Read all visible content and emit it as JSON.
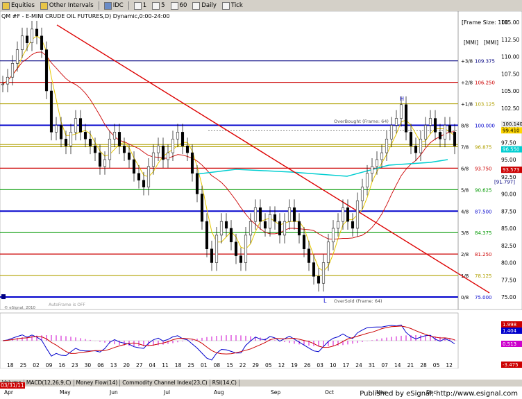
{
  "toolbar": {
    "items": [
      {
        "label": "Equities",
        "icon": "folder-icon"
      },
      {
        "label": "Other Intervals",
        "icon": "folder-icon"
      },
      {
        "label": "IDC",
        "icon": "settings-icon"
      },
      {
        "label": "1",
        "icon": "page-icon"
      },
      {
        "label": "5",
        "icon": "page-icon"
      },
      {
        "label": "60",
        "icon": "page-icon"
      },
      {
        "label": "Daily",
        "icon": "page-icon"
      },
      {
        "label": "Tick",
        "icon": "page-icon"
      }
    ]
  },
  "chart": {
    "title": "QM #F - E-MINI CRUDE OIL FUTURES,D) Dynamic,0:00-24:00",
    "frame_size": "[Frame Size: 100",
    "mm_label": "[MMI]",
    "overbought": "OverBought (Frame: 64)",
    "oversold": "OverSold (Frame: 64)",
    "watermark": "AutoFrame is OFF",
    "copyright": "© eSignal, 2010",
    "price_label": "100.140",
    "price_label_yellow": "99.410",
    "cyan_label": "96.550",
    "red_label": "93.573",
    "bracket_label": "[91.797]",
    "date_box": "03/31/11",
    "murrey": [
      {
        "label": "+3/8",
        "value": "109.375",
        "color": "#000080"
      },
      {
        "label": "+2/8",
        "value": "106.250",
        "color": "#cc0000"
      },
      {
        "label": "+1/8",
        "value": "103.125",
        "color": "#b0a000"
      },
      {
        "label": "8/8",
        "value": "100.000",
        "color": "#0000cc"
      },
      {
        "label": "7/8",
        "value": "96.875",
        "color": "#b0a000"
      },
      {
        "label": "6/8",
        "value": "93.750",
        "color": "#cc0000"
      },
      {
        "label": "5/8",
        "value": "90.625",
        "color": "#009900"
      },
      {
        "label": "4/8",
        "value": "87.500",
        "color": "#0000cc"
      },
      {
        "label": "3/8",
        "value": "84.375",
        "color": "#009900"
      },
      {
        "label": "2/8",
        "value": "81.250",
        "color": "#cc0000"
      },
      {
        "label": "1/8",
        "value": "78.125",
        "color": "#b0a000"
      },
      {
        "label": "0/8",
        "value": "75.000",
        "color": "#0000cc"
      }
    ],
    "y_ticks": [
      "115.00",
      "112.50",
      "110.00",
      "107.50",
      "105.00",
      "102.50",
      "100.00",
      "97.50",
      "95.00",
      "92.50",
      "90.00",
      "87.50",
      "85.00",
      "82.50",
      "80.00",
      "77.50",
      "75.00"
    ],
    "markers": {
      "H": "H",
      "L": "L"
    }
  },
  "oscillator": {
    "r1": "1.998",
    "r2": "1.404",
    "r3": "0.513",
    "r4": "-3.475"
  },
  "xaxis": {
    "days": [
      "18",
      "25",
      "02",
      "09",
      "16",
      "23",
      "30",
      "06",
      "13",
      "20",
      "27",
      "04",
      "11",
      "18",
      "25",
      "01",
      "08",
      "15",
      "22",
      "29",
      "05",
      "12",
      "19",
      "26",
      "03",
      "10",
      "17",
      "24",
      "31",
      "07",
      "14",
      "21",
      "28",
      "05",
      "12"
    ],
    "months": [
      "Apr",
      "May",
      "Jun",
      "Jul",
      "Aug",
      "Sep",
      "Oct",
      "Nov",
      "Dec"
    ]
  },
  "tabs": [
    "Volume",
    "MACD(12,26,9,C)",
    "Money Flow(14)",
    "Commodity Channel Index(23,C)",
    "RSI(14,C)"
  ],
  "footer": "Published by eSignal, http://www.esignal.com"
}
